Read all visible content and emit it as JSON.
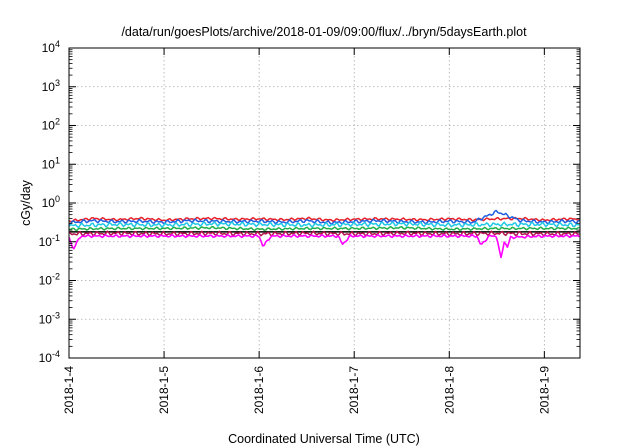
{
  "chart_data": {
    "type": "line",
    "title": "/data/run/goesPlots/archive/2018-01-09/09:00/flux/../bryn/5daysEarth.plot",
    "xlabel": "Coordinated Universal Time (UTC)",
    "ylabel": "cGy/day",
    "yscale": "log",
    "ylim": [
      0.0001,
      10000
    ],
    "y_ticks": [
      {
        "value": 0.0001,
        "base": "10",
        "exp": "-4"
      },
      {
        "value": 0.001,
        "base": "10",
        "exp": "-3"
      },
      {
        "value": 0.01,
        "base": "10",
        "exp": "-2"
      },
      {
        "value": 0.1,
        "base": "10",
        "exp": "-1"
      },
      {
        "value": 1,
        "base": "10",
        "exp": "0"
      },
      {
        "value": 10,
        "base": "10",
        "exp": "1"
      },
      {
        "value": 100,
        "base": "10",
        "exp": "2"
      },
      {
        "value": 1000,
        "base": "10",
        "exp": "3"
      },
      {
        "value": 10000,
        "base": "10",
        "exp": "4"
      }
    ],
    "xlim": [
      "2018-01-04T00:00",
      "2018-01-09T09:00"
    ],
    "x_ticks": [
      {
        "value": "2018-01-04T00:00",
        "label": "2018-1-4"
      },
      {
        "value": "2018-01-05T00:00",
        "label": "2018-1-5"
      },
      {
        "value": "2018-01-06T00:00",
        "label": "2018-1-6"
      },
      {
        "value": "2018-01-07T00:00",
        "label": "2018-1-7"
      },
      {
        "value": "2018-01-08T00:00",
        "label": "2018-1-8"
      },
      {
        "value": "2018-01-09T00:00",
        "label": "2018-1-9"
      }
    ],
    "grid": true,
    "series": [
      {
        "color": "#e8202a",
        "baseline": 0.38,
        "values": [
          {
            "x": "2018-01-04T00:00",
            "y": 0.34
          },
          {
            "x": "2018-01-04T06:00",
            "y": 0.4
          },
          {
            "x": "2018-01-04T12:00",
            "y": 0.37
          },
          {
            "x": "2018-01-04T18:00",
            "y": 0.4
          },
          {
            "x": "2018-01-05T00:00",
            "y": 0.36
          },
          {
            "x": "2018-01-05T06:00",
            "y": 0.39
          },
          {
            "x": "2018-01-05T12:00",
            "y": 0.4
          },
          {
            "x": "2018-01-05T18:00",
            "y": 0.38
          },
          {
            "x": "2018-01-06T00:00",
            "y": 0.39
          },
          {
            "x": "2018-01-06T06:00",
            "y": 0.37
          },
          {
            "x": "2018-01-06T12:00",
            "y": 0.4
          },
          {
            "x": "2018-01-06T18:00",
            "y": 0.36
          },
          {
            "x": "2018-01-07T00:00",
            "y": 0.38
          },
          {
            "x": "2018-01-07T06:00",
            "y": 0.39
          },
          {
            "x": "2018-01-07T12:00",
            "y": 0.38
          },
          {
            "x": "2018-01-07T18:00",
            "y": 0.37
          },
          {
            "x": "2018-01-08T00:00",
            "y": 0.39
          },
          {
            "x": "2018-01-08T06:00",
            "y": 0.37
          },
          {
            "x": "2018-01-08T12:00",
            "y": 0.39
          },
          {
            "x": "2018-01-08T18:00",
            "y": 0.4
          },
          {
            "x": "2018-01-09T00:00",
            "y": 0.36
          },
          {
            "x": "2018-01-09T06:00",
            "y": 0.39
          },
          {
            "x": "2018-01-09T09:00",
            "y": 0.38
          }
        ]
      },
      {
        "color": "#1f5fe0",
        "baseline": 0.33,
        "values": [
          {
            "x": "2018-01-04T00:00",
            "y": 0.31
          },
          {
            "x": "2018-01-04T06:00",
            "y": 0.35
          },
          {
            "x": "2018-01-04T12:00",
            "y": 0.33
          },
          {
            "x": "2018-01-04T18:00",
            "y": 0.34
          },
          {
            "x": "2018-01-05T00:00",
            "y": 0.32
          },
          {
            "x": "2018-01-05T06:00",
            "y": 0.35
          },
          {
            "x": "2018-01-05T12:00",
            "y": 0.34
          },
          {
            "x": "2018-01-05T18:00",
            "y": 0.33
          },
          {
            "x": "2018-01-06T00:00",
            "y": 0.34
          },
          {
            "x": "2018-01-06T06:00",
            "y": 0.32
          },
          {
            "x": "2018-01-06T12:00",
            "y": 0.35
          },
          {
            "x": "2018-01-06T18:00",
            "y": 0.31
          },
          {
            "x": "2018-01-07T00:00",
            "y": 0.33
          },
          {
            "x": "2018-01-07T06:00",
            "y": 0.35
          },
          {
            "x": "2018-01-07T12:00",
            "y": 0.33
          },
          {
            "x": "2018-01-07T18:00",
            "y": 0.32
          },
          {
            "x": "2018-01-08T00:00",
            "y": 0.34
          },
          {
            "x": "2018-01-08T06:00",
            "y": 0.32
          },
          {
            "x": "2018-01-08T12:00",
            "y": 0.6
          },
          {
            "x": "2018-01-08T18:00",
            "y": 0.35
          },
          {
            "x": "2018-01-09T00:00",
            "y": 0.32
          },
          {
            "x": "2018-01-09T06:00",
            "y": 0.34
          },
          {
            "x": "2018-01-09T09:00",
            "y": 0.33
          }
        ]
      },
      {
        "color": "#1ec8e6",
        "baseline": 0.28,
        "values": [
          {
            "x": "2018-01-04T00:00",
            "y": 0.26
          },
          {
            "x": "2018-01-04T12:00",
            "y": 0.28
          },
          {
            "x": "2018-01-05T00:00",
            "y": 0.27
          },
          {
            "x": "2018-01-05T12:00",
            "y": 0.29
          },
          {
            "x": "2018-01-06T00:00",
            "y": 0.28
          },
          {
            "x": "2018-01-06T12:00",
            "y": 0.27
          },
          {
            "x": "2018-01-07T00:00",
            "y": 0.28
          },
          {
            "x": "2018-01-07T12:00",
            "y": 0.29
          },
          {
            "x": "2018-01-08T00:00",
            "y": 0.27
          },
          {
            "x": "2018-01-08T12:00",
            "y": 0.28
          },
          {
            "x": "2018-01-09T00:00",
            "y": 0.28
          },
          {
            "x": "2018-01-09T09:00",
            "y": 0.27
          }
        ]
      },
      {
        "color": "#22b04a",
        "baseline": 0.22,
        "values": [
          {
            "x": "2018-01-04T00:00",
            "y": 0.21
          },
          {
            "x": "2018-01-04T12:00",
            "y": 0.22
          },
          {
            "x": "2018-01-05T00:00",
            "y": 0.22
          },
          {
            "x": "2018-01-05T12:00",
            "y": 0.23
          },
          {
            "x": "2018-01-06T00:00",
            "y": 0.21
          },
          {
            "x": "2018-01-06T12:00",
            "y": 0.22
          },
          {
            "x": "2018-01-07T00:00",
            "y": 0.22
          },
          {
            "x": "2018-01-07T12:00",
            "y": 0.23
          },
          {
            "x": "2018-01-08T00:00",
            "y": 0.21
          },
          {
            "x": "2018-01-08T12:00",
            "y": 0.22
          },
          {
            "x": "2018-01-09T00:00",
            "y": 0.22
          },
          {
            "x": "2018-01-09T09:00",
            "y": 0.22
          }
        ]
      },
      {
        "color": "#000000",
        "baseline": 0.18,
        "values": [
          {
            "x": "2018-01-04T00:00",
            "y": 0.18
          },
          {
            "x": "2018-01-05T00:00",
            "y": 0.18
          },
          {
            "x": "2018-01-06T00:00",
            "y": 0.18
          },
          {
            "x": "2018-01-07T00:00",
            "y": 0.18
          },
          {
            "x": "2018-01-08T00:00",
            "y": 0.18
          },
          {
            "x": "2018-01-09T00:00",
            "y": 0.18
          },
          {
            "x": "2018-01-09T09:00",
            "y": 0.18
          }
        ]
      },
      {
        "color": "#b4144c",
        "baseline": 0.16,
        "values": [
          {
            "x": "2018-01-04T00:00",
            "y": 0.16
          },
          {
            "x": "2018-01-04T12:00",
            "y": 0.165
          },
          {
            "x": "2018-01-05T00:00",
            "y": 0.16
          },
          {
            "x": "2018-01-05T12:00",
            "y": 0.165
          },
          {
            "x": "2018-01-06T00:00",
            "y": 0.16
          },
          {
            "x": "2018-01-06T12:00",
            "y": 0.165
          },
          {
            "x": "2018-01-07T00:00",
            "y": 0.16
          },
          {
            "x": "2018-01-07T12:00",
            "y": 0.165
          },
          {
            "x": "2018-01-08T00:00",
            "y": 0.16
          },
          {
            "x": "2018-01-08T12:00",
            "y": 0.165
          },
          {
            "x": "2018-01-09T00:00",
            "y": 0.16
          },
          {
            "x": "2018-01-09T09:00",
            "y": 0.16
          }
        ]
      },
      {
        "color": "#ff00ff",
        "baseline": 0.14,
        "values": [
          {
            "x": "2018-01-04T00:00",
            "y": 0.13
          },
          {
            "x": "2018-01-04T01:00",
            "y": 0.065
          },
          {
            "x": "2018-01-04T03:00",
            "y": 0.14
          },
          {
            "x": "2018-01-05T00:00",
            "y": 0.14
          },
          {
            "x": "2018-01-06T00:00",
            "y": 0.14
          },
          {
            "x": "2018-01-06T01:00",
            "y": 0.075
          },
          {
            "x": "2018-01-06T03:00",
            "y": 0.14
          },
          {
            "x": "2018-01-06T20:00",
            "y": 0.14
          },
          {
            "x": "2018-01-06T21:00",
            "y": 0.085
          },
          {
            "x": "2018-01-06T23:00",
            "y": 0.14
          },
          {
            "x": "2018-01-08T00:00",
            "y": 0.14
          },
          {
            "x": "2018-01-08T07:00",
            "y": 0.14
          },
          {
            "x": "2018-01-08T08:00",
            "y": 0.08
          },
          {
            "x": "2018-01-08T10:00",
            "y": 0.14
          },
          {
            "x": "2018-01-08T12:00",
            "y": 0.14
          },
          {
            "x": "2018-01-08T13:00",
            "y": 0.035
          },
          {
            "x": "2018-01-08T14:00",
            "y": 0.12
          },
          {
            "x": "2018-01-08T14:30",
            "y": 0.065
          },
          {
            "x": "2018-01-08T15:30",
            "y": 0.13
          },
          {
            "x": "2018-01-09T00:00",
            "y": 0.14
          },
          {
            "x": "2018-01-09T09:00",
            "y": 0.14
          }
        ]
      }
    ]
  }
}
